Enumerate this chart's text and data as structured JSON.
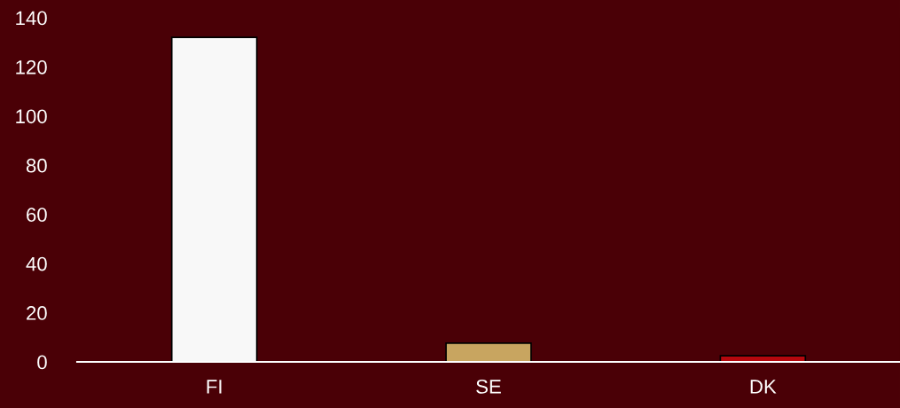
{
  "chart_data": {
    "type": "bar",
    "categories": [
      "FI",
      "SE",
      "DK"
    ],
    "values": [
      132,
      7.6,
      2.5
    ],
    "colors": [
      "#f8f8f8",
      "#c8a560",
      "#b5070d"
    ],
    "ylim": [
      0,
      140
    ],
    "yticks": [
      0,
      20,
      40,
      60,
      80,
      100,
      120,
      140
    ],
    "grid": false,
    "legend": false
  }
}
